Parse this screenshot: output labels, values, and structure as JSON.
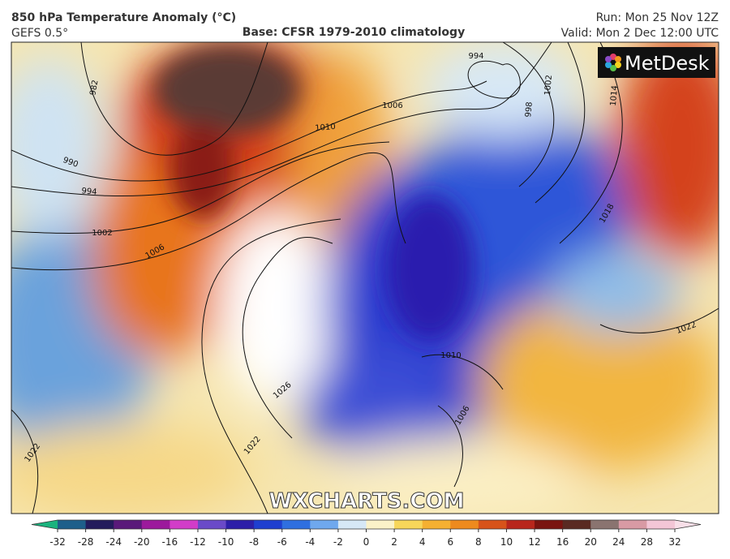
{
  "header": {
    "title": "850 hPa Temperature Anomaly (°C)",
    "model": "GEFS 0.5°",
    "base": "Base: CFSR 1979-2010 climatology",
    "run": "Run: Mon 25 Nov 12Z",
    "valid": "Valid: Mon 2 Dec 12:00 UTC"
  },
  "logo": "MetDesk",
  "watermark": "WXCHARTS.COM",
  "isobar_labels": [
    982,
    990,
    994,
    1002,
    1006,
    1010,
    1006,
    994,
    1002,
    998,
    1014,
    1018,
    1026,
    1022,
    1022,
    1010,
    1006,
    1022
  ],
  "colorbar": {
    "ticks": [
      -32,
      -28,
      -24,
      -20,
      -16,
      -12,
      -10,
      -8,
      -6,
      -4,
      -2,
      0,
      2,
      4,
      6,
      8,
      10,
      12,
      16,
      20,
      24,
      28,
      32
    ],
    "colors": [
      "#1e5f8a",
      "#241c5c",
      "#5a1a7a",
      "#9c1a9c",
      "#d23cc8",
      "#6a4ac8",
      "#2d1fa8",
      "#1f3fd0",
      "#2f6fe0",
      "#6fa8ee",
      "#d6e8f6",
      "#fbf2c8",
      "#f7d65a",
      "#f5b031",
      "#ee8a1e",
      "#d7531a",
      "#b8261c",
      "#7a1410",
      "#5a2a22",
      "#8a7470",
      "#d89aa4",
      "#f3c6d6"
    ],
    "under_color": "#1bb37e",
    "over_color": "#f8dfe8"
  }
}
